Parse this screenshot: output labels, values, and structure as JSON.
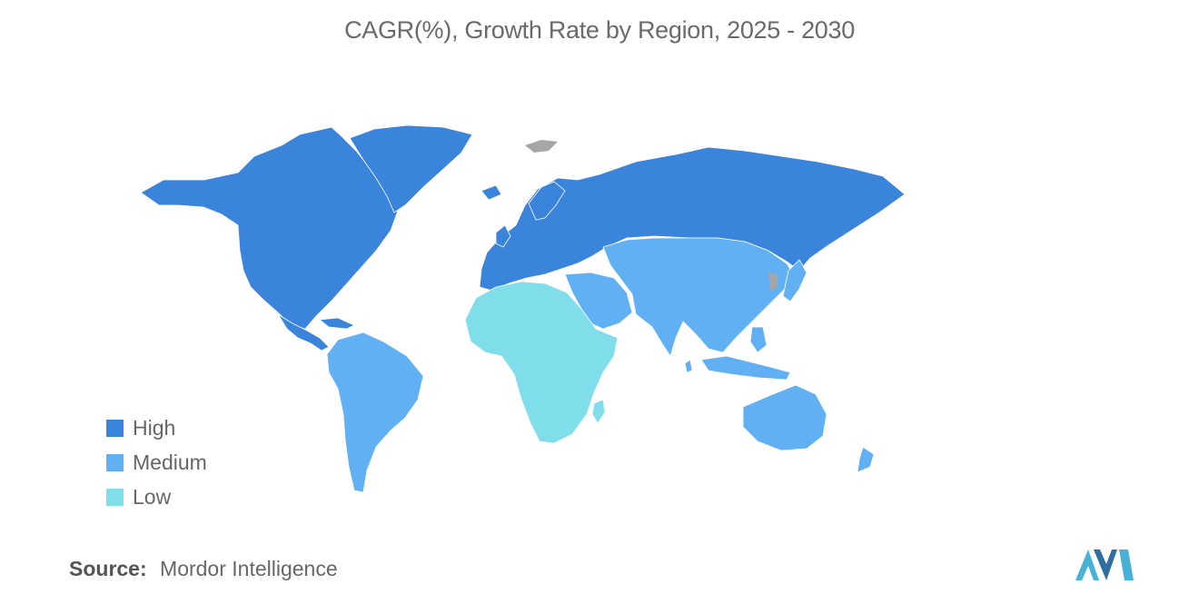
{
  "title": "CAGR(%), Growth Rate by Region, 2025 - 2030",
  "legend": [
    {
      "label": "High",
      "color": "#3b84dc"
    },
    {
      "label": "Medium",
      "color": "#62b0f4"
    },
    {
      "label": "Low",
      "color": "#7fdeea"
    }
  ],
  "no_data_color": "#a6a6a6",
  "regions": {
    "north_america": "High",
    "europe_russia": "High",
    "latin_america": "Medium",
    "asia_pacific": "Medium",
    "middle_east": "Medium",
    "africa": "Low"
  },
  "source": {
    "label": "Source:",
    "text": "Mordor Intelligence"
  },
  "logo": {
    "name": "mordor-intelligence-logo",
    "colors": [
      "#49b0d6",
      "#2f6f9e"
    ]
  }
}
